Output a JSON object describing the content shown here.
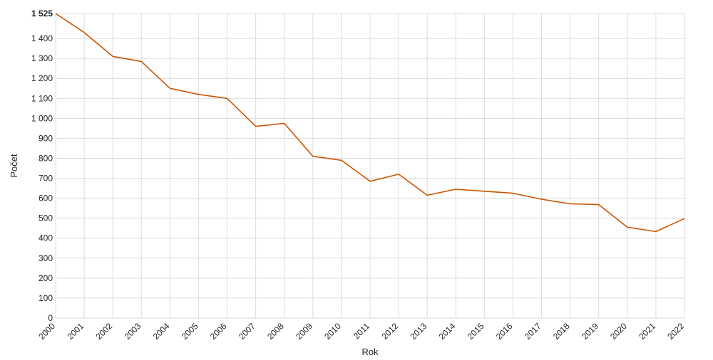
{
  "chart_data": {
    "type": "line",
    "xlabel": "Rok",
    "ylabel": "Počet",
    "ylim": [
      0,
      1525
    ],
    "yticks": [
      "0",
      "100",
      "200",
      "300",
      "400",
      "500",
      "600",
      "700",
      "800",
      "900",
      "1 000",
      "1 100",
      "1 200",
      "1 300",
      "1 400",
      "1 525"
    ],
    "ytick_values": [
      0,
      100,
      200,
      300,
      400,
      500,
      600,
      700,
      800,
      900,
      1000,
      1100,
      1200,
      1300,
      1400,
      1525
    ],
    "grid": true,
    "legend": "none",
    "x": [
      "2000",
      "2001",
      "2002",
      "2003",
      "2004",
      "2005",
      "2006",
      "2007",
      "2008",
      "2009",
      "2010",
      "2011",
      "2012",
      "2013",
      "2014",
      "2015",
      "2016",
      "2017",
      "2018",
      "2019",
      "2020",
      "2021",
      "2022"
    ],
    "series": [
      {
        "color": "#cc5500",
        "values": [
          1525,
          1430,
          1310,
          1285,
          1150,
          1120,
          1100,
          960,
          975,
          810,
          790,
          685,
          720,
          615,
          645,
          635,
          625,
          595,
          572,
          568,
          455,
          433,
          498
        ]
      }
    ]
  }
}
